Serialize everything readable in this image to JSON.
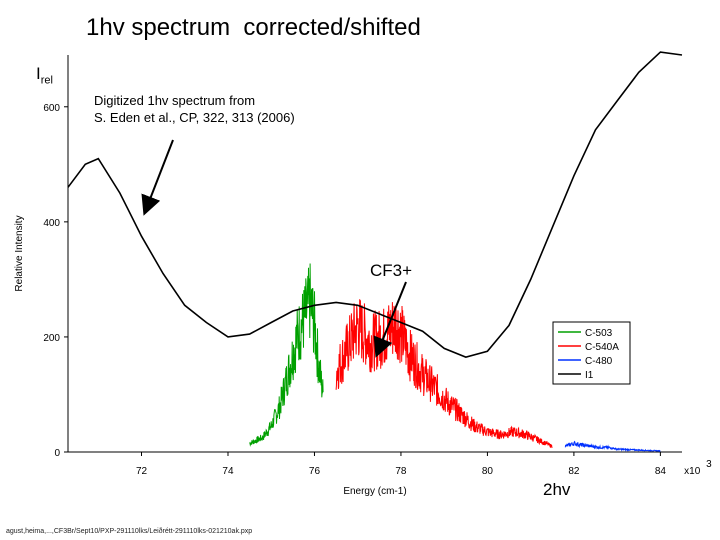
{
  "slide": {
    "title": "1hv spectrum  corrected/shifted",
    "irel_main": "I",
    "irel_sub": "rel",
    "note_line1": "Digitized 1hv spectrum from",
    "note_line2": "S. Eden et al., CP, 322, 313 (2006)",
    "cf3_label": "CF3+",
    "twohv_label": "2hv",
    "footer": "agust,heima,...,CF3Br/Sept10/PXP-291110lks/Leiðrétt-291110lks-021210ak.pxp"
  },
  "chart_data": {
    "type": "line",
    "xlabel": "Energy (cm-1)",
    "ylabel": "Relative Intensity",
    "x_multiplier_label": "x10",
    "x_multiplier_exp": "3",
    "xlim": [
      70.3,
      84.5
    ],
    "ylim": [
      0,
      690
    ],
    "xticks": [
      72,
      74,
      76,
      78,
      80,
      82,
      84
    ],
    "xtick_labels": [
      "72",
      "74",
      "76",
      "78",
      "80",
      "82",
      "84"
    ],
    "yticks": [
      0,
      200,
      400,
      600
    ],
    "ytick_labels": [
      "0",
      "200",
      "400",
      "600"
    ],
    "legend_position": "right",
    "series": [
      {
        "name": "C-503",
        "color": "#00a000",
        "x": [
          74.5,
          74.8,
          75.0,
          75.2,
          75.4,
          75.6,
          75.8,
          75.9,
          76.0,
          76.1,
          76.2
        ],
        "y": [
          15,
          25,
          45,
          80,
          140,
          200,
          240,
          260,
          220,
          150,
          100
        ]
      },
      {
        "name": "C-540A",
        "color": "#ff0000",
        "x": [
          76.5,
          76.7,
          77.0,
          77.3,
          77.6,
          77.9,
          78.2,
          78.5,
          78.8,
          79.1,
          79.4,
          79.7,
          80.0,
          80.3,
          80.6,
          80.9,
          81.2,
          81.5
        ],
        "y": [
          140,
          170,
          220,
          190,
          200,
          225,
          170,
          135,
          110,
          85,
          65,
          45,
          35,
          30,
          35,
          30,
          20,
          10
        ]
      },
      {
        "name": "C-480",
        "color": "#0030ff",
        "x": [
          81.8,
          82.0,
          82.2,
          82.4,
          82.6,
          82.8,
          83.0,
          83.3,
          83.6,
          84.0
        ],
        "y": [
          10,
          15,
          12,
          10,
          8,
          8,
          5,
          4,
          3,
          2
        ]
      },
      {
        "name": "I1",
        "color": "#000000",
        "x": [
          70.3,
          70.7,
          71.0,
          71.5,
          72.0,
          72.5,
          73.0,
          73.5,
          74.0,
          74.5,
          75.0,
          75.5,
          76.0,
          76.5,
          77.0,
          77.5,
          78.0,
          78.5,
          79.0,
          79.5,
          80.0,
          80.5,
          81.0,
          81.5,
          82.0,
          82.5,
          83.0,
          83.5,
          84.0,
          84.5
        ],
        "y": [
          460,
          500,
          510,
          450,
          375,
          310,
          255,
          225,
          200,
          205,
          225,
          245,
          255,
          260,
          255,
          240,
          225,
          210,
          180,
          165,
          175,
          220,
          300,
          390,
          480,
          560,
          610,
          660,
          695,
          690
        ]
      }
    ]
  }
}
